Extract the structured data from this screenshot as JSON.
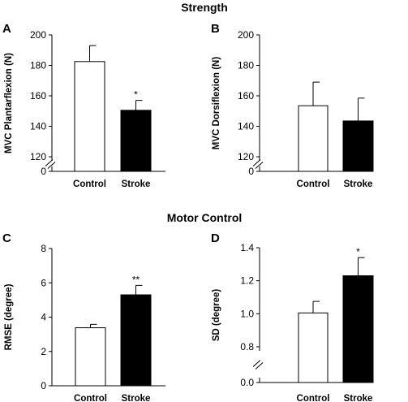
{
  "sections": {
    "strength": "Strength",
    "motor_control": "Motor Control"
  },
  "chart_data": [
    {
      "panel": "A",
      "type": "bar",
      "categories": [
        "Control",
        "Stroke"
      ],
      "values": [
        182.5,
        150.5
      ],
      "errors": [
        10.5,
        6.5
      ],
      "significance": [
        "",
        "*"
      ],
      "bar_colors": [
        "#ffffff",
        "#000000"
      ],
      "ylabel": "MVC Plantarflexion (N)",
      "yticks": [
        "0",
        "120",
        "140",
        "160",
        "180",
        "200"
      ],
      "ylim": [
        120,
        200
      ],
      "axis_break": true
    },
    {
      "panel": "B",
      "type": "bar",
      "categories": [
        "Control",
        "Stroke"
      ],
      "values": [
        153.5,
        143.5
      ],
      "errors": [
        15.5,
        15
      ],
      "significance": [
        "",
        ""
      ],
      "bar_colors": [
        "#ffffff",
        "#000000"
      ],
      "ylabel": "MVC Dorsiflexion (N)",
      "yticks": [
        "0",
        "120",
        "140",
        "160",
        "180",
        "200"
      ],
      "ylim": [
        120,
        200
      ],
      "axis_break": true
    },
    {
      "panel": "C",
      "type": "bar",
      "categories": [
        "Control",
        "Stroke"
      ],
      "values": [
        3.38,
        5.3
      ],
      "errors": [
        0.2,
        0.55
      ],
      "significance": [
        "",
        "**"
      ],
      "bar_colors": [
        "#ffffff",
        "#000000"
      ],
      "ylabel": "RMSE (degree)",
      "yticks": [
        "0",
        "2",
        "4",
        "6",
        "8"
      ],
      "ylim": [
        0,
        8
      ],
      "axis_break": false
    },
    {
      "panel": "D",
      "type": "bar",
      "categories": [
        "Control",
        "Stroke"
      ],
      "values": [
        1.005,
        1.23
      ],
      "errors": [
        0.07,
        0.11
      ],
      "significance": [
        "",
        "*"
      ],
      "bar_colors": [
        "#ffffff",
        "#000000"
      ],
      "ylabel": "SD (degree)",
      "yticks": [
        "0.0",
        "0.8",
        "1.0",
        "1.2",
        "1.4"
      ],
      "ylim": [
        0.8,
        1.4
      ],
      "axis_break": true
    }
  ]
}
